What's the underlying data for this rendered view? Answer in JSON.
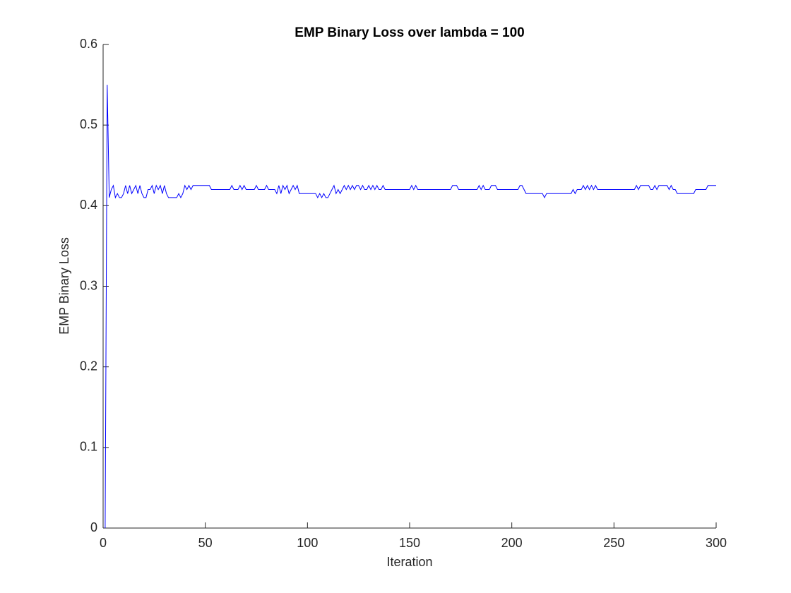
{
  "chart_data": {
    "type": "line",
    "title": "EMP Binary Loss over lambda = 100",
    "x_label": "Iteration",
    "y_label": "EMP Binary Loss",
    "xlim": [
      0,
      300
    ],
    "xticks": [
      0,
      50,
      100,
      150,
      200,
      250,
      300
    ],
    "ylim": [
      0,
      0.6
    ],
    "yticks": [
      0,
      0.1,
      0.2,
      0.3,
      0.4,
      0.5,
      0.6
    ],
    "grid": false,
    "x": [
      1,
      2,
      3,
      4,
      5,
      6,
      7,
      8,
      9,
      10,
      11,
      12,
      13,
      14,
      15,
      16,
      17,
      18,
      19,
      20,
      21,
      22,
      23,
      24,
      25,
      26,
      27,
      28,
      29,
      30,
      31,
      32,
      33,
      34,
      35,
      36,
      37,
      38,
      39,
      40,
      41,
      42,
      43,
      44,
      45,
      46,
      47,
      48,
      49,
      50,
      51,
      52,
      53,
      54,
      55,
      56,
      57,
      58,
      59,
      60,
      61,
      62,
      63,
      64,
      65,
      66,
      67,
      68,
      69,
      70,
      71,
      72,
      73,
      74,
      75,
      76,
      77,
      78,
      79,
      80,
      81,
      82,
      83,
      84,
      85,
      86,
      87,
      88,
      89,
      90,
      91,
      92,
      93,
      94,
      95,
      96,
      97,
      98,
      99,
      100,
      101,
      102,
      103,
      104,
      105,
      106,
      107,
      108,
      109,
      110,
      111,
      112,
      113,
      114,
      115,
      116,
      117,
      118,
      119,
      120,
      121,
      122,
      123,
      124,
      125,
      126,
      127,
      128,
      129,
      130,
      131,
      132,
      133,
      134,
      135,
      136,
      137,
      138,
      139,
      140,
      141,
      142,
      143,
      144,
      145,
      146,
      147,
      148,
      149,
      150,
      151,
      152,
      153,
      154,
      155,
      156,
      157,
      158,
      159,
      160,
      161,
      162,
      163,
      164,
      165,
      166,
      167,
      168,
      169,
      170,
      171,
      172,
      173,
      174,
      175,
      176,
      177,
      178,
      179,
      180,
      181,
      182,
      183,
      184,
      185,
      186,
      187,
      188,
      189,
      190,
      191,
      192,
      193,
      194,
      195,
      196,
      197,
      198,
      199,
      200,
      201,
      202,
      203,
      204,
      205,
      206,
      207,
      208,
      209,
      210,
      211,
      212,
      213,
      214,
      215,
      216,
      217,
      218,
      219,
      220,
      221,
      222,
      223,
      224,
      225,
      226,
      227,
      228,
      229,
      230,
      231,
      232,
      233,
      234,
      235,
      236,
      237,
      238,
      239,
      240,
      241,
      242,
      243,
      244,
      245,
      246,
      247,
      248,
      249,
      250,
      251,
      252,
      253,
      254,
      255,
      256,
      257,
      258,
      259,
      260,
      261,
      262,
      263,
      264,
      265,
      266,
      267,
      268,
      269,
      270,
      271,
      272,
      273,
      274,
      275,
      276,
      277,
      278,
      279,
      280,
      281,
      282,
      283,
      284,
      285,
      286,
      287,
      288,
      289,
      290,
      291,
      292,
      293,
      294,
      295,
      296,
      297,
      298,
      299,
      300
    ],
    "series": [
      {
        "color": "#0000ff",
        "values": [
          0,
          0.55,
          0.41,
          0.42,
          0.425,
          0.41,
          0.415,
          0.41,
          0.41,
          0.415,
          0.425,
          0.415,
          0.425,
          0.415,
          0.42,
          0.425,
          0.415,
          0.425,
          0.415,
          0.41,
          0.41,
          0.42,
          0.42,
          0.425,
          0.415,
          0.425,
          0.42,
          0.425,
          0.415,
          0.425,
          0.415,
          0.41,
          0.41,
          0.41,
          0.41,
          0.41,
          0.415,
          0.41,
          0.415,
          0.425,
          0.42,
          0.425,
          0.42,
          0.425,
          0.425,
          0.425,
          0.425,
          0.425,
          0.425,
          0.425,
          0.425,
          0.425,
          0.42,
          0.42,
          0.42,
          0.42,
          0.42,
          0.42,
          0.42,
          0.42,
          0.42,
          0.42,
          0.425,
          0.42,
          0.42,
          0.42,
          0.425,
          0.42,
          0.425,
          0.42,
          0.42,
          0.42,
          0.42,
          0.42,
          0.425,
          0.42,
          0.42,
          0.42,
          0.42,
          0.425,
          0.42,
          0.42,
          0.42,
          0.42,
          0.415,
          0.425,
          0.415,
          0.425,
          0.42,
          0.425,
          0.415,
          0.42,
          0.425,
          0.42,
          0.425,
          0.415,
          0.415,
          0.415,
          0.415,
          0.415,
          0.415,
          0.415,
          0.415,
          0.415,
          0.41,
          0.415,
          0.41,
          0.415,
          0.41,
          0.41,
          0.415,
          0.42,
          0.425,
          0.415,
          0.42,
          0.415,
          0.42,
          0.425,
          0.42,
          0.425,
          0.42,
          0.425,
          0.42,
          0.425,
          0.425,
          0.42,
          0.425,
          0.42,
          0.42,
          0.425,
          0.42,
          0.425,
          0.42,
          0.425,
          0.42,
          0.42,
          0.425,
          0.42,
          0.42,
          0.42,
          0.42,
          0.42,
          0.42,
          0.42,
          0.42,
          0.42,
          0.42,
          0.42,
          0.42,
          0.42,
          0.425,
          0.42,
          0.425,
          0.42,
          0.42,
          0.42,
          0.42,
          0.42,
          0.42,
          0.42,
          0.42,
          0.42,
          0.42,
          0.42,
          0.42,
          0.42,
          0.42,
          0.42,
          0.42,
          0.42,
          0.425,
          0.425,
          0.425,
          0.42,
          0.42,
          0.42,
          0.42,
          0.42,
          0.42,
          0.42,
          0.42,
          0.42,
          0.42,
          0.425,
          0.42,
          0.425,
          0.42,
          0.42,
          0.42,
          0.425,
          0.425,
          0.425,
          0.42,
          0.42,
          0.42,
          0.42,
          0.42,
          0.42,
          0.42,
          0.42,
          0.42,
          0.42,
          0.42,
          0.425,
          0.425,
          0.42,
          0.415,
          0.415,
          0.415,
          0.415,
          0.415,
          0.415,
          0.415,
          0.415,
          0.415,
          0.41,
          0.415,
          0.415,
          0.415,
          0.415,
          0.415,
          0.415,
          0.415,
          0.415,
          0.415,
          0.415,
          0.415,
          0.415,
          0.415,
          0.42,
          0.415,
          0.42,
          0.42,
          0.42,
          0.425,
          0.42,
          0.425,
          0.42,
          0.425,
          0.42,
          0.425,
          0.42,
          0.42,
          0.42,
          0.42,
          0.42,
          0.42,
          0.42,
          0.42,
          0.42,
          0.42,
          0.42,
          0.42,
          0.42,
          0.42,
          0.42,
          0.42,
          0.42,
          0.42,
          0.42,
          0.425,
          0.42,
          0.425,
          0.425,
          0.425,
          0.425,
          0.425,
          0.42,
          0.42,
          0.425,
          0.42,
          0.425,
          0.425,
          0.425,
          0.425,
          0.425,
          0.42,
          0.425,
          0.42,
          0.42,
          0.415,
          0.415,
          0.415,
          0.415,
          0.415,
          0.415,
          0.415,
          0.415,
          0.415,
          0.42,
          0.42,
          0.42,
          0.42,
          0.42,
          0.42,
          0.425,
          0.425,
          0.425,
          0.425,
          0.425
        ]
      }
    ]
  }
}
